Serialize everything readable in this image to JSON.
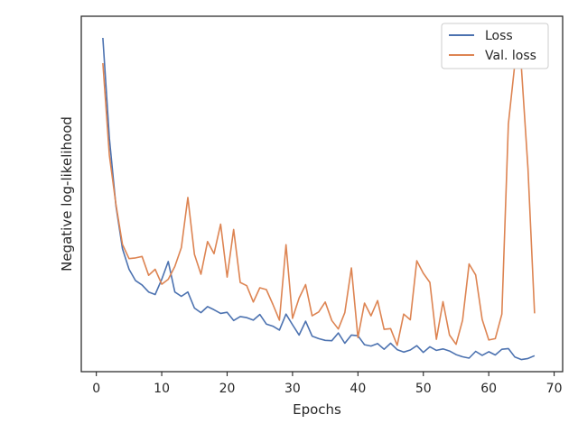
{
  "chart_data": {
    "type": "line",
    "title": "",
    "xlabel": "Epochs",
    "ylabel": "Negative log-likelihood",
    "xlim": [
      -2.3,
      71.3
    ],
    "ylim": [
      0.0,
      1.0
    ],
    "xticks": [
      0,
      10,
      20,
      30,
      40,
      50,
      60,
      70
    ],
    "xtick_labels": [
      "0",
      "10",
      "20",
      "30",
      "40",
      "50",
      "60",
      "70"
    ],
    "y_tick_labels_shown": false,
    "grid": false,
    "legend_position": "top-right",
    "x": [
      1,
      2,
      3,
      4,
      5,
      6,
      7,
      8,
      9,
      10,
      11,
      12,
      13,
      14,
      15,
      16,
      17,
      18,
      19,
      20,
      21,
      22,
      23,
      24,
      25,
      26,
      27,
      28,
      29,
      30,
      31,
      32,
      33,
      34,
      35,
      36,
      37,
      38,
      39,
      40,
      41,
      42,
      43,
      44,
      45,
      46,
      47,
      48,
      49,
      50,
      51,
      52,
      53,
      54,
      55,
      56,
      57,
      58,
      59,
      60,
      61,
      62,
      63,
      64,
      65,
      66,
      67
    ],
    "series": [
      {
        "name": "Loss",
        "color": "#4c72b0",
        "values": [
          0.939,
          0.657,
          0.466,
          0.346,
          0.288,
          0.256,
          0.244,
          0.224,
          0.217,
          0.26,
          0.31,
          0.224,
          0.212,
          0.224,
          0.179,
          0.166,
          0.183,
          0.174,
          0.164,
          0.167,
          0.144,
          0.155,
          0.152,
          0.145,
          0.161,
          0.134,
          0.128,
          0.117,
          0.162,
          0.132,
          0.103,
          0.142,
          0.1,
          0.093,
          0.088,
          0.087,
          0.109,
          0.08,
          0.103,
          0.101,
          0.076,
          0.072,
          0.079,
          0.063,
          0.08,
          0.062,
          0.055,
          0.061,
          0.073,
          0.054,
          0.07,
          0.06,
          0.064,
          0.058,
          0.048,
          0.042,
          0.038,
          0.057,
          0.046,
          0.056,
          0.047,
          0.063,
          0.065,
          0.041,
          0.034,
          0.037,
          0.045
        ]
      },
      {
        "name": "Val. loss",
        "color": "#dd8452",
        "values": [
          0.868,
          0.609,
          0.47,
          0.358,
          0.318,
          0.32,
          0.324,
          0.271,
          0.288,
          0.246,
          0.26,
          0.296,
          0.349,
          0.49,
          0.33,
          0.274,
          0.366,
          0.332,
          0.415,
          0.266,
          0.4,
          0.251,
          0.242,
          0.196,
          0.236,
          0.231,
          0.189,
          0.145,
          0.357,
          0.15,
          0.207,
          0.245,
          0.157,
          0.168,
          0.196,
          0.144,
          0.12,
          0.166,
          0.292,
          0.096,
          0.193,
          0.157,
          0.2,
          0.119,
          0.121,
          0.074,
          0.162,
          0.146,
          0.312,
          0.277,
          0.251,
          0.091,
          0.197,
          0.103,
          0.077,
          0.145,
          0.303,
          0.272,
          0.147,
          0.089,
          0.093,
          0.162,
          0.697,
          0.867,
          0.853,
          0.572,
          0.164
        ]
      }
    ]
  }
}
